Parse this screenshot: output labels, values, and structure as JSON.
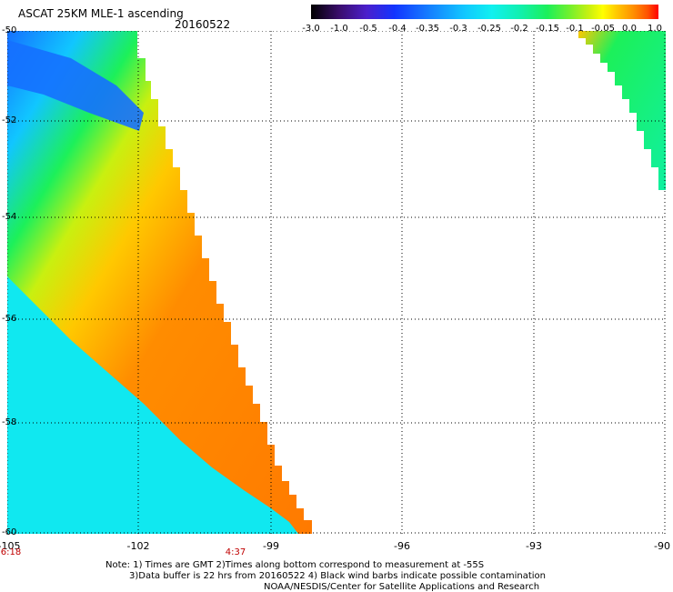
{
  "header": {
    "title": "ASCAT 25KM MLE-1 ascending",
    "date": "20160522"
  },
  "colorbar": {
    "labels": [
      "-3.0",
      "-1.0",
      "-0.5",
      "-0.4",
      "-0.35",
      "-0.3",
      "-0.25",
      "-0.2",
      "-0.15",
      "-0.1",
      "-0.05",
      "0.0",
      "1.0"
    ],
    "colors": [
      "#000000",
      "#4b1fcc",
      "#1234ff",
      "#1570ff",
      "#11c6ff",
      "#10f0f0",
      "#10f0b0",
      "#1cf05a",
      "#6cf030",
      "#c8f010",
      "#ffff00",
      "#ff8c00",
      "#ff0000"
    ]
  },
  "map": {
    "lat_labels": [
      "-50",
      "-52",
      "-54",
      "-56",
      "-58",
      "-60"
    ],
    "lon_labels": [
      "-105",
      "-102",
      "-99",
      "-96",
      "-93",
      "-90"
    ],
    "time_labels": [
      "6:18",
      "4:37"
    ],
    "grid": true,
    "lat_range": [
      -60,
      -50
    ],
    "lon_range": [
      -105,
      -90
    ]
  },
  "notes": {
    "line1": "Note: 1) Times are GMT 2)Times along bottom correspond to measurement at -55S",
    "line2": "3)Data buffer is 22 hrs from 20160522 4) Black wind barbs indicate possible contamination",
    "line3": "NOAA/NESDIS/Center for Satellite Applications and Research"
  }
}
